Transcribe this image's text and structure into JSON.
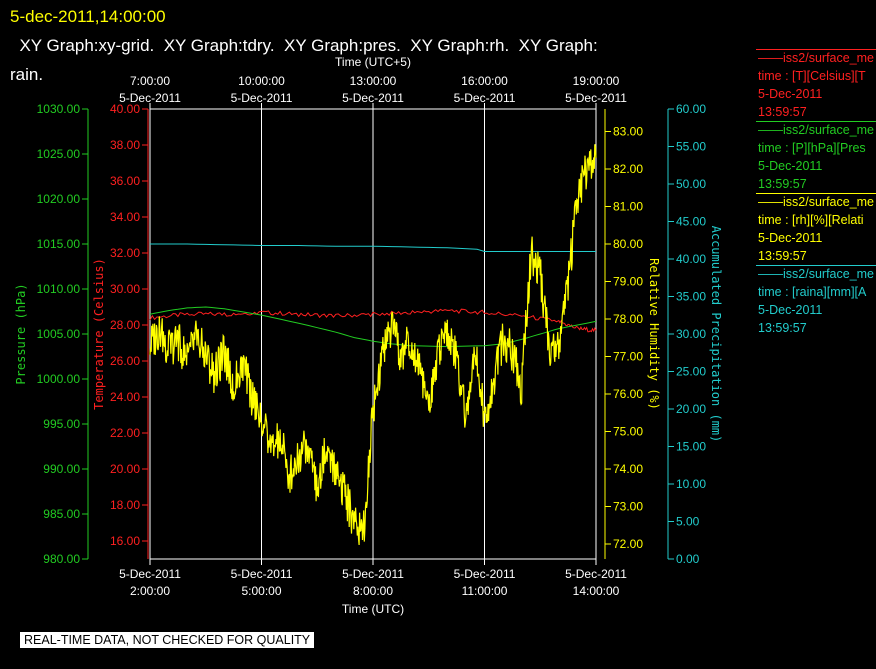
{
  "header": {
    "timestamp": "5-dec-2011,14:00:00",
    "title_line1": "  XY Graph:xy-grid.  XY Graph:tdry.  XY Graph:pres.  XY Graph:rh.  XY Graph:",
    "title_line2": "rain."
  },
  "footer": {
    "quality_note": "REAL-TIME DATA, NOT CHECKED FOR QUALITY"
  },
  "colors": {
    "temperature": "#ff2020",
    "pressure": "#22cc22",
    "humidity": "#ffff00",
    "precipitation": "#22cccc",
    "grid": "#ffffff",
    "frame": "#ffffff"
  },
  "legend": [
    {
      "series": "temperature",
      "line1": "——iss2/surface_me",
      "line2": "time : [T][Celsius][T",
      "line3": "5-Dec-2011",
      "line4": "13:59:57"
    },
    {
      "series": "pressure",
      "line1": "——iss2/surface_me",
      "line2": "time : [P][hPa][Pres",
      "line3": "5-Dec-2011",
      "line4": "13:59:57"
    },
    {
      "series": "humidity",
      "line1": "——iss2/surface_me",
      "line2": "time : [rh][%][Relati",
      "line3": "5-Dec-2011",
      "line4": "13:59:57"
    },
    {
      "series": "precipitation",
      "line1": "——iss2/surface_me",
      "line2": "time : [raina][mm][A",
      "line3": "5-Dec-2011",
      "line4": "13:59:57"
    }
  ],
  "chart_data": {
    "type": "line",
    "x_axis_bottom": {
      "title": "Time (UTC)",
      "range_hours": [
        2.0,
        14.0
      ],
      "ticks": [
        {
          "hours": 2,
          "date": "5-Dec-2011",
          "time": "2:00:00"
        },
        {
          "hours": 5,
          "date": "5-Dec-2011",
          "time": "5:00:00"
        },
        {
          "hours": 8,
          "date": "5-Dec-2011",
          "time": "8:00:00"
        },
        {
          "hours": 11,
          "date": "5-Dec-2011",
          "time": "11:00:00"
        },
        {
          "hours": 14,
          "date": "5-Dec-2011",
          "time": "14:00:00"
        }
      ]
    },
    "x_axis_top": {
      "title": "Time (UTC+5)",
      "ticks": [
        {
          "hours": 2,
          "time": "7:00:00",
          "date": "5-Dec-2011"
        },
        {
          "hours": 5,
          "time": "10:00:00",
          "date": "5-Dec-2011"
        },
        {
          "hours": 8,
          "time": "13:00:00",
          "date": "5-Dec-2011"
        },
        {
          "hours": 11,
          "time": "16:00:00",
          "date": "5-Dec-2011"
        },
        {
          "hours": 14,
          "time": "19:00:00",
          "date": "5-Dec-2011"
        }
      ]
    },
    "y_axes": {
      "pressure": {
        "label": "Pressure (hPa)",
        "min": 980,
        "max": 1030,
        "ticks": [
          "980.00",
          "985.00",
          "990.00",
          "995.00",
          "1000.00",
          "1005.00",
          "1010.00",
          "1015.00",
          "1020.00",
          "1025.00",
          "1030.00"
        ]
      },
      "temperature": {
        "label": "Temperature (Celsius)",
        "min": 15,
        "max": 40,
        "ticks": [
          "16.00",
          "18.00",
          "20.00",
          "22.00",
          "24.00",
          "26.00",
          "28.00",
          "30.00",
          "32.00",
          "34.00",
          "36.00",
          "38.00",
          "40.00"
        ]
      },
      "humidity": {
        "label": "Relative Humidity (%)",
        "min": 71.6,
        "max": 83.6,
        "ticks": [
          "72.00",
          "73.00",
          "74.00",
          "75.00",
          "76.00",
          "77.00",
          "78.00",
          "79.00",
          "80.00",
          "81.00",
          "82.00",
          "83.00"
        ]
      },
      "precipitation": {
        "label": "Accumulated Precipitation (mm)",
        "min": 0,
        "max": 60,
        "ticks": [
          "0.00",
          "5.00",
          "10.00",
          "15.00",
          "20.00",
          "25.00",
          "30.00",
          "35.00",
          "40.00",
          "45.00",
          "50.00",
          "55.00",
          "60.00"
        ]
      }
    },
    "grid": "vertical",
    "legend_placement": "right",
    "series": [
      {
        "key": "temperature",
        "axis": "temperature",
        "x": [
          2.0,
          3.0,
          4.0,
          5.0,
          6.0,
          7.0,
          8.0,
          9.0,
          10.0,
          11.0,
          12.0,
          13.0,
          13.5,
          14.0
        ],
        "y": [
          28.4,
          28.6,
          28.6,
          28.7,
          28.6,
          28.5,
          28.6,
          28.7,
          28.8,
          28.7,
          28.5,
          28.2,
          27.8,
          27.7
        ]
      },
      {
        "key": "pressure",
        "axis": "pressure",
        "x": [
          2.0,
          2.5,
          3.0,
          3.5,
          4.0,
          5.0,
          6.0,
          7.0,
          7.5,
          8.0,
          8.5,
          9.0,
          10.0,
          11.0,
          11.5,
          12.0,
          12.5,
          13.0,
          13.5,
          14.0
        ],
        "y": [
          1007.2,
          1007.6,
          1007.9,
          1008.0,
          1007.8,
          1007.1,
          1006.2,
          1005.2,
          1004.6,
          1004.2,
          1003.9,
          1003.7,
          1003.6,
          1003.7,
          1003.9,
          1004.4,
          1005.0,
          1005.6,
          1006.0,
          1006.4
        ]
      },
      {
        "key": "precipitation",
        "axis": "precipitation",
        "x": [
          2.0,
          3.0,
          4.0,
          5.0,
          6.0,
          7.0,
          8.0,
          9.0,
          10.0,
          10.8,
          11.0,
          11.5,
          12.0,
          13.0,
          14.0
        ],
        "y": [
          42.0,
          42.0,
          41.9,
          41.8,
          41.8,
          41.7,
          41.7,
          41.6,
          41.5,
          41.3,
          41.0,
          41.0,
          41.0,
          41.0,
          41.0
        ]
      },
      {
        "key": "humidity",
        "axis": "humidity",
        "x": [
          2.0,
          2.25,
          2.5,
          2.75,
          3.0,
          3.25,
          3.5,
          3.75,
          4.0,
          4.25,
          4.5,
          4.75,
          5.0,
          5.25,
          5.5,
          5.75,
          6.0,
          6.25,
          6.5,
          6.75,
          7.0,
          7.25,
          7.5,
          7.75,
          8.0,
          8.25,
          8.5,
          8.75,
          9.0,
          9.25,
          9.5,
          9.75,
          10.0,
          10.25,
          10.5,
          10.75,
          11.0,
          11.25,
          11.5,
          11.75,
          12.0,
          12.25,
          12.5,
          12.75,
          13.0,
          13.25,
          13.5,
          13.75,
          14.0
        ],
        "y": [
          77.3,
          77.7,
          77.2,
          77.4,
          76.9,
          77.5,
          77.0,
          76.5,
          77.1,
          76.2,
          76.8,
          75.9,
          75.3,
          74.5,
          74.8,
          73.8,
          74.4,
          74.7,
          73.5,
          74.6,
          74.0,
          73.3,
          72.6,
          72.4,
          75.6,
          77.1,
          77.8,
          77.0,
          77.5,
          76.8,
          75.6,
          77.2,
          77.6,
          76.9,
          75.4,
          77.1,
          75.3,
          76.4,
          77.5,
          77.1,
          76.2,
          79.8,
          79.2,
          77.2,
          77.4,
          79.0,
          81.2,
          82.0,
          82.3
        ]
      }
    ]
  }
}
